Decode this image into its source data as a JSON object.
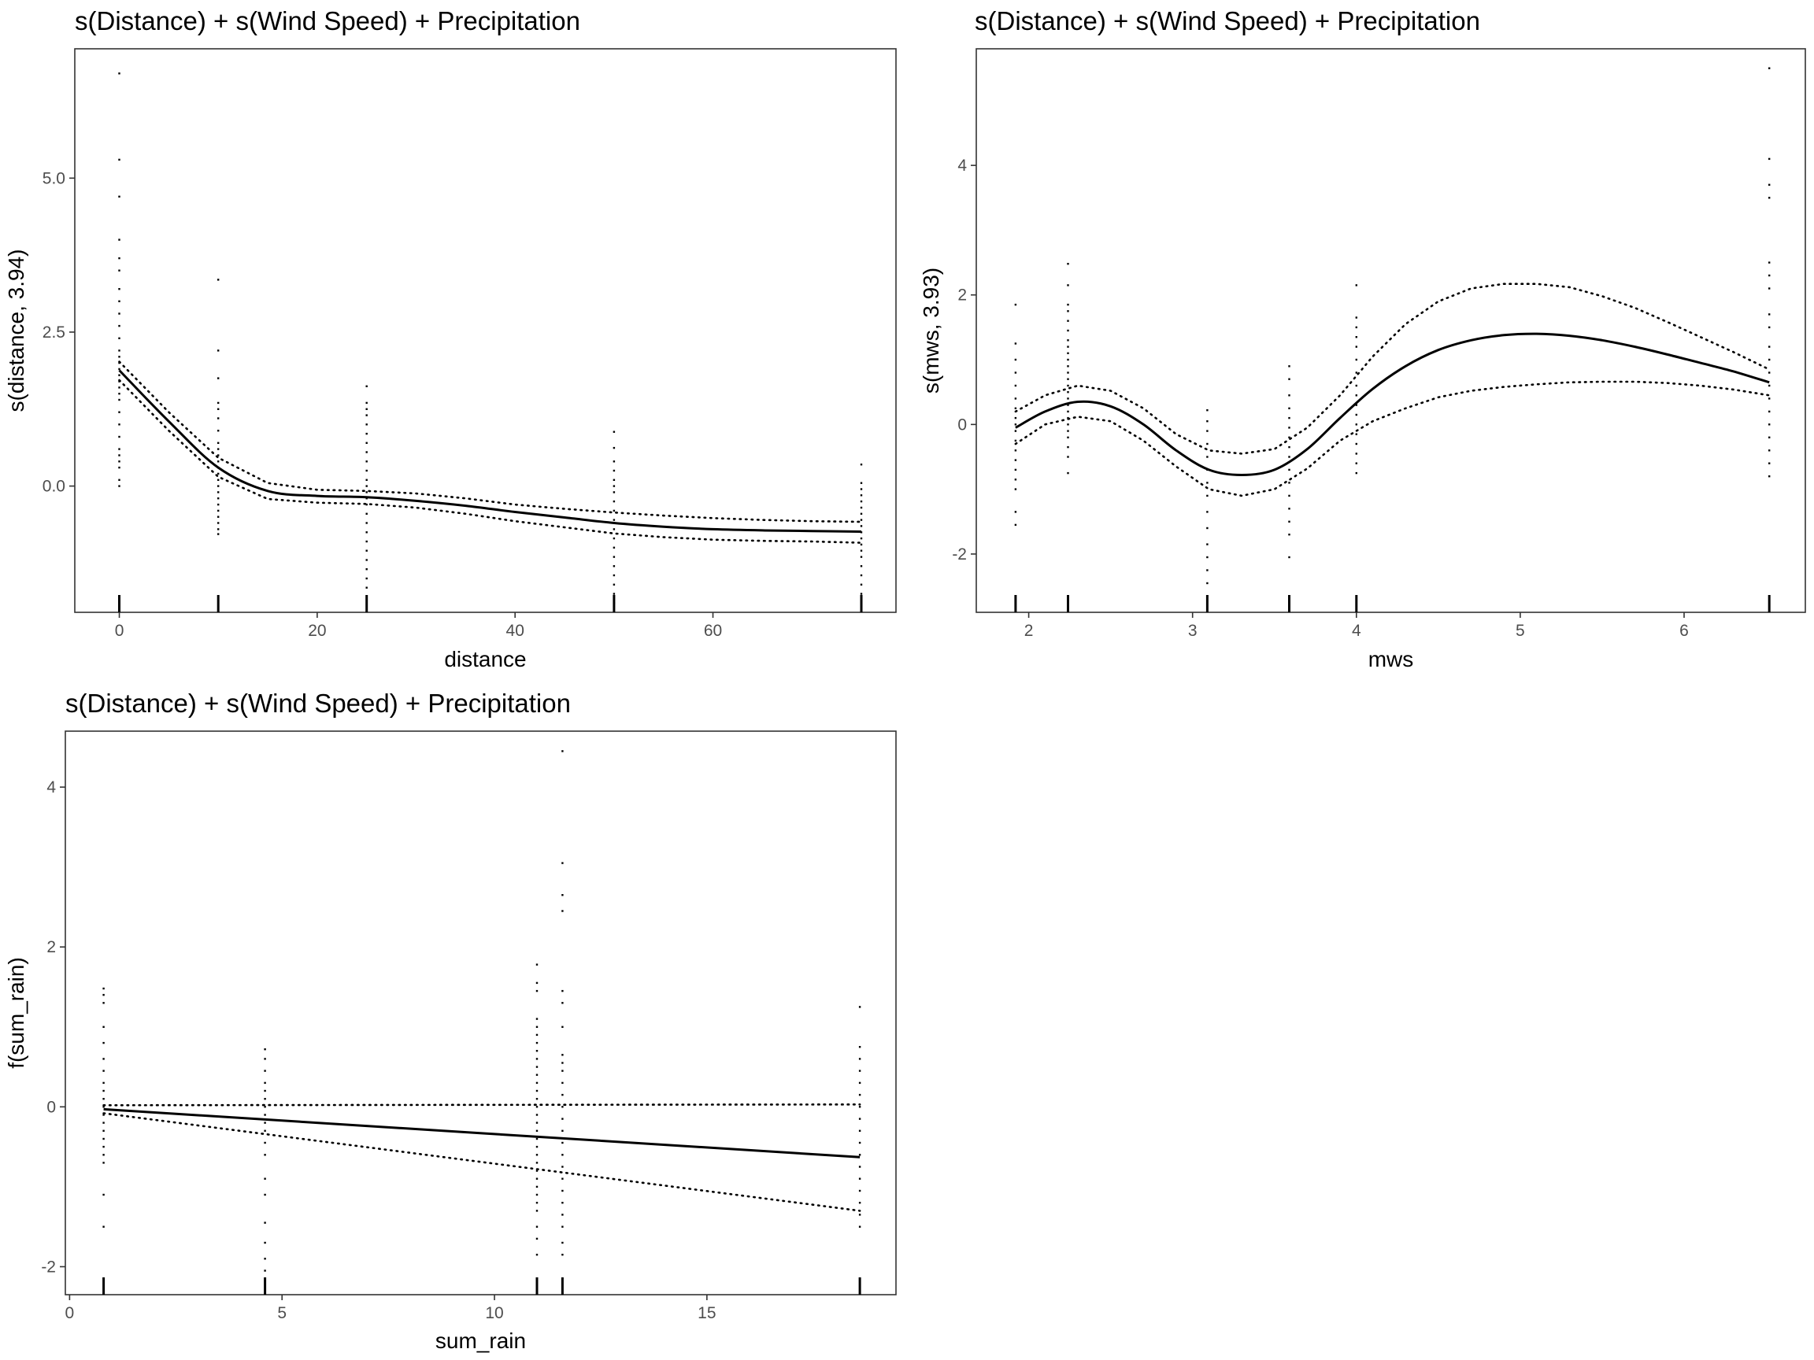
{
  "chart_data": [
    {
      "type": "line",
      "title": "s(Distance) + s(Wind Speed) + Precipitation",
      "xlabel": "distance",
      "ylabel": "s(distance, 3.94)",
      "xlim": [
        -4.5,
        78.5
      ],
      "ylim": [
        -2.05,
        7.1
      ],
      "xticks": [
        0,
        20,
        40,
        60
      ],
      "xtick_labels": [
        "0",
        "20",
        "40",
        "60"
      ],
      "yticks": [
        0,
        2.5,
        5
      ],
      "ytick_labels": [
        "0.0",
        "2.5",
        "5.0"
      ],
      "grid": false,
      "fit": {
        "x": [
          0,
          5,
          10,
          15,
          20,
          25,
          30,
          35,
          40,
          45,
          50,
          55,
          60,
          65,
          70,
          75
        ],
        "y": [
          1.88,
          1.05,
          0.3,
          -0.08,
          -0.16,
          -0.18,
          -0.24,
          -0.32,
          -0.42,
          -0.51,
          -0.6,
          -0.66,
          -0.7,
          -0.72,
          -0.73,
          -0.74
        ]
      },
      "ci_upper": {
        "x": [
          0,
          5,
          10,
          15,
          20,
          25,
          30,
          35,
          40,
          45,
          50,
          55,
          60,
          65,
          70,
          75
        ],
        "y": [
          2.02,
          1.2,
          0.46,
          0.05,
          -0.06,
          -0.08,
          -0.12,
          -0.2,
          -0.3,
          -0.37,
          -0.43,
          -0.48,
          -0.52,
          -0.55,
          -0.57,
          -0.58
        ]
      },
      "ci_lower": {
        "x": [
          0,
          5,
          10,
          15,
          20,
          25,
          30,
          35,
          40,
          45,
          50,
          55,
          60,
          65,
          70,
          75
        ],
        "y": [
          1.72,
          0.9,
          0.15,
          -0.21,
          -0.27,
          -0.29,
          -0.35,
          -0.45,
          -0.57,
          -0.67,
          -0.77,
          -0.83,
          -0.87,
          -0.89,
          -0.9,
          -0.92
        ]
      },
      "rug_x": [
        0,
        10,
        25,
        50,
        75
      ],
      "residuals": [
        {
          "x": 0,
          "y": [
            6.7,
            5.3,
            4.7,
            4.0,
            3.7,
            3.5,
            3.2,
            3.0,
            2.8,
            2.6,
            2.4,
            2.2,
            2.1,
            2.0,
            1.9,
            1.8,
            1.7,
            1.6,
            1.5,
            1.4,
            1.2,
            1.0,
            0.8,
            0.6,
            0.5,
            0.4,
            0.3,
            0.1,
            0.0
          ]
        },
        {
          "x": 10,
          "y": [
            3.35,
            2.2,
            1.75,
            1.35,
            1.25,
            1.1,
            0.9,
            0.7,
            0.6,
            0.5,
            0.4,
            0.3,
            0.2,
            0.1,
            0.0,
            -0.1,
            -0.2,
            -0.3,
            -0.4,
            -0.5,
            -0.6,
            -0.7,
            -0.78
          ]
        },
        {
          "x": 25,
          "y": [
            1.62,
            1.35,
            1.25,
            1.15,
            1.0,
            0.85,
            0.7,
            0.55,
            0.4,
            0.25,
            0.1,
            0.0,
            -0.1,
            -0.2,
            -0.3,
            -0.45,
            -0.6,
            -0.75,
            -0.9,
            -1.05,
            -1.2,
            -1.35,
            -1.5,
            -1.65,
            -1.8,
            -1.95
          ]
        },
        {
          "x": 50,
          "y": [
            0.88,
            0.62,
            0.4,
            0.25,
            0.1,
            0.0,
            -0.1,
            -0.25,
            -0.4,
            -0.55,
            -0.7,
            -0.85,
            -1.0,
            -1.15,
            -1.3,
            -1.45,
            -1.6,
            -1.75,
            -1.9
          ]
        },
        {
          "x": 75,
          "y": [
            0.35,
            0.05,
            -0.05,
            -0.15,
            -0.25,
            -0.35,
            -0.45,
            -0.55,
            -0.65,
            -0.75,
            -0.85,
            -0.95,
            -1.05,
            -1.15,
            -1.3,
            -1.45,
            -1.6,
            -1.75,
            -1.9
          ]
        }
      ]
    },
    {
      "type": "line",
      "title": "s(Distance) + s(Wind Speed) + Precipitation",
      "xlabel": "mws",
      "ylabel": "s(mws, 3.93)",
      "xlim": [
        1.68,
        6.74
      ],
      "ylim": [
        -2.9,
        5.8
      ],
      "xticks": [
        2,
        3,
        4,
        5,
        6
      ],
      "xtick_labels": [
        "2",
        "3",
        "4",
        "5",
        "6"
      ],
      "yticks": [
        -2,
        0,
        2,
        4
      ],
      "ytick_labels": [
        "-2",
        "0",
        "2",
        "4"
      ],
      "grid": false,
      "fit": {
        "x": [
          1.92,
          2.1,
          2.3,
          2.5,
          2.7,
          2.9,
          3.1,
          3.3,
          3.5,
          3.7,
          3.9,
          4.1,
          4.3,
          4.5,
          4.7,
          4.9,
          5.1,
          5.3,
          5.5,
          5.7,
          5.9,
          6.1,
          6.3,
          6.52
        ],
        "y": [
          -0.05,
          0.2,
          0.35,
          0.28,
          0.0,
          -0.4,
          -0.7,
          -0.78,
          -0.7,
          -0.38,
          0.1,
          0.55,
          0.9,
          1.15,
          1.3,
          1.38,
          1.4,
          1.37,
          1.3,
          1.2,
          1.08,
          0.95,
          0.82,
          0.65
        ]
      },
      "ci_upper": {
        "x": [
          1.92,
          2.1,
          2.3,
          2.5,
          2.7,
          2.9,
          3.1,
          3.3,
          3.5,
          3.7,
          3.9,
          4.1,
          4.3,
          4.5,
          4.7,
          4.9,
          5.1,
          5.3,
          5.5,
          5.7,
          5.9,
          6.1,
          6.3,
          6.52
        ],
        "y": [
          0.2,
          0.45,
          0.6,
          0.52,
          0.25,
          -0.15,
          -0.4,
          -0.45,
          -0.38,
          -0.05,
          0.45,
          1.05,
          1.55,
          1.9,
          2.1,
          2.17,
          2.17,
          2.12,
          1.98,
          1.8,
          1.58,
          1.35,
          1.12,
          0.85
        ]
      },
      "ci_lower": {
        "x": [
          1.92,
          2.1,
          2.3,
          2.5,
          2.7,
          2.9,
          3.1,
          3.3,
          3.5,
          3.7,
          3.9,
          4.1,
          4.3,
          4.5,
          4.7,
          4.9,
          5.1,
          5.3,
          5.5,
          5.7,
          5.9,
          6.1,
          6.3,
          6.52
        ],
        "y": [
          -0.3,
          0.0,
          0.12,
          0.05,
          -0.25,
          -0.65,
          -1.0,
          -1.1,
          -1.0,
          -0.68,
          -0.25,
          0.05,
          0.25,
          0.42,
          0.52,
          0.58,
          0.62,
          0.65,
          0.66,
          0.66,
          0.64,
          0.6,
          0.54,
          0.45
        ]
      },
      "rug_x": [
        1.92,
        2.24,
        3.09,
        3.59,
        4.0,
        6.52
      ],
      "residuals": [
        {
          "x": 1.92,
          "y": [
            1.85,
            1.25,
            1.0,
            0.8,
            0.6,
            0.4,
            0.25,
            0.1,
            0.0,
            -0.1,
            -0.25,
            -0.4,
            -0.55,
            -0.7,
            -0.85,
            -1.0,
            -1.35,
            -1.55
          ]
        },
        {
          "x": 2.24,
          "y": [
            2.48,
            2.15,
            1.85,
            1.75,
            1.6,
            1.45,
            1.3,
            1.2,
            1.1,
            1.0,
            0.9,
            0.8,
            0.7,
            0.6,
            0.5,
            0.4,
            0.3,
            0.2,
            0.1,
            0.0,
            -0.1,
            -0.2,
            -0.35,
            -0.5,
            -0.75
          ]
        },
        {
          "x": 3.09,
          "y": [
            0.22,
            0.05,
            -0.1,
            -0.3,
            -0.5,
            -0.7,
            -0.9,
            -1.1,
            -1.35,
            -1.6,
            -1.85,
            -2.05,
            -2.25,
            -2.45,
            -2.65
          ]
        },
        {
          "x": 3.59,
          "y": [
            0.9,
            0.7,
            0.45,
            0.25,
            0.1,
            -0.05,
            -0.2,
            -0.35,
            -0.5,
            -0.7,
            -0.9,
            -1.1,
            -1.3,
            -1.5,
            -1.7,
            -2.05
          ]
        },
        {
          "x": 4.0,
          "y": [
            2.15,
            1.65,
            1.5,
            1.35,
            1.2,
            1.0,
            0.8,
            0.6,
            0.45,
            0.3,
            0.15,
            0.0,
            -0.15,
            -0.3,
            -0.45,
            -0.6,
            -0.75
          ]
        },
        {
          "x": 6.52,
          "y": [
            5.5,
            4.1,
            3.7,
            3.5,
            2.5,
            2.3,
            2.1,
            1.7,
            1.5,
            1.2,
            1.0,
            0.8,
            0.6,
            0.4,
            0.2,
            0.0,
            -0.2,
            -0.4,
            -0.6,
            -0.8
          ]
        }
      ]
    },
    {
      "type": "line",
      "title": "s(Distance) + s(Wind Speed) + Precipitation",
      "xlabel": "sum_rain",
      "ylabel": "f(sum_rain)",
      "xlim": [
        -0.1,
        19.45
      ],
      "ylim": [
        -2.35,
        4.7
      ],
      "xticks": [
        0,
        5,
        10,
        15
      ],
      "xtick_labels": [
        "0",
        "5",
        "10",
        "15"
      ],
      "yticks": [
        -2,
        0,
        2,
        4
      ],
      "ytick_labels": [
        "-2",
        "0",
        "2",
        "4"
      ],
      "grid": false,
      "fit": {
        "x": [
          0.8,
          18.6
        ],
        "y": [
          -0.03,
          -0.63
        ]
      },
      "ci_upper": {
        "x": [
          0.8,
          18.6
        ],
        "y": [
          0.02,
          0.03
        ]
      },
      "ci_lower": {
        "x": [
          0.8,
          18.6
        ],
        "y": [
          -0.08,
          -1.3
        ]
      },
      "rug_x": [
        0.8,
        4.6,
        11.0,
        11.6,
        18.6
      ],
      "residuals": [
        {
          "x": 0.8,
          "y": [
            1.48,
            1.4,
            1.3,
            1.0,
            0.8,
            0.6,
            0.45,
            0.3,
            0.2,
            0.1,
            0.0,
            -0.1,
            -0.2,
            -0.3,
            -0.4,
            -0.5,
            -0.6,
            -0.7,
            -1.1,
            -1.5
          ]
        },
        {
          "x": 4.6,
          "y": [
            0.72,
            0.6,
            0.45,
            0.3,
            0.2,
            0.1,
            0.0,
            -0.1,
            -0.2,
            -0.3,
            -0.45,
            -0.6,
            -0.9,
            -1.1,
            -1.45,
            -1.7,
            -1.9,
            -2.05
          ]
        },
        {
          "x": 11.0,
          "y": [
            1.78,
            1.55,
            1.45,
            1.1,
            1.0,
            0.9,
            0.8,
            0.7,
            0.6,
            0.5,
            0.4,
            0.3,
            0.2,
            0.1,
            0.0,
            -0.1,
            -0.2,
            -0.3,
            -0.4,
            -0.5,
            -0.6,
            -0.7,
            -0.8,
            -0.9,
            -1.0,
            -1.1,
            -1.2,
            -1.3,
            -1.5,
            -1.65,
            -1.85
          ]
        },
        {
          "x": 11.6,
          "y": [
            4.45,
            3.05,
            2.65,
            2.45,
            1.45,
            1.3,
            1.0,
            0.65,
            0.55,
            0.45,
            0.3,
            0.15,
            0.0,
            -0.15,
            -0.3,
            -0.45,
            -0.6,
            -0.75,
            -0.9,
            -1.05,
            -1.2,
            -1.35,
            -1.5,
            -1.7,
            -1.85
          ]
        },
        {
          "x": 18.6,
          "y": [
            1.25,
            0.75,
            0.6,
            0.45,
            0.3,
            0.15,
            0.0,
            -0.15,
            -0.3,
            -0.45,
            -0.6,
            -0.75,
            -0.9,
            -1.05,
            -1.2,
            -1.35,
            -1.5
          ]
        }
      ]
    }
  ]
}
